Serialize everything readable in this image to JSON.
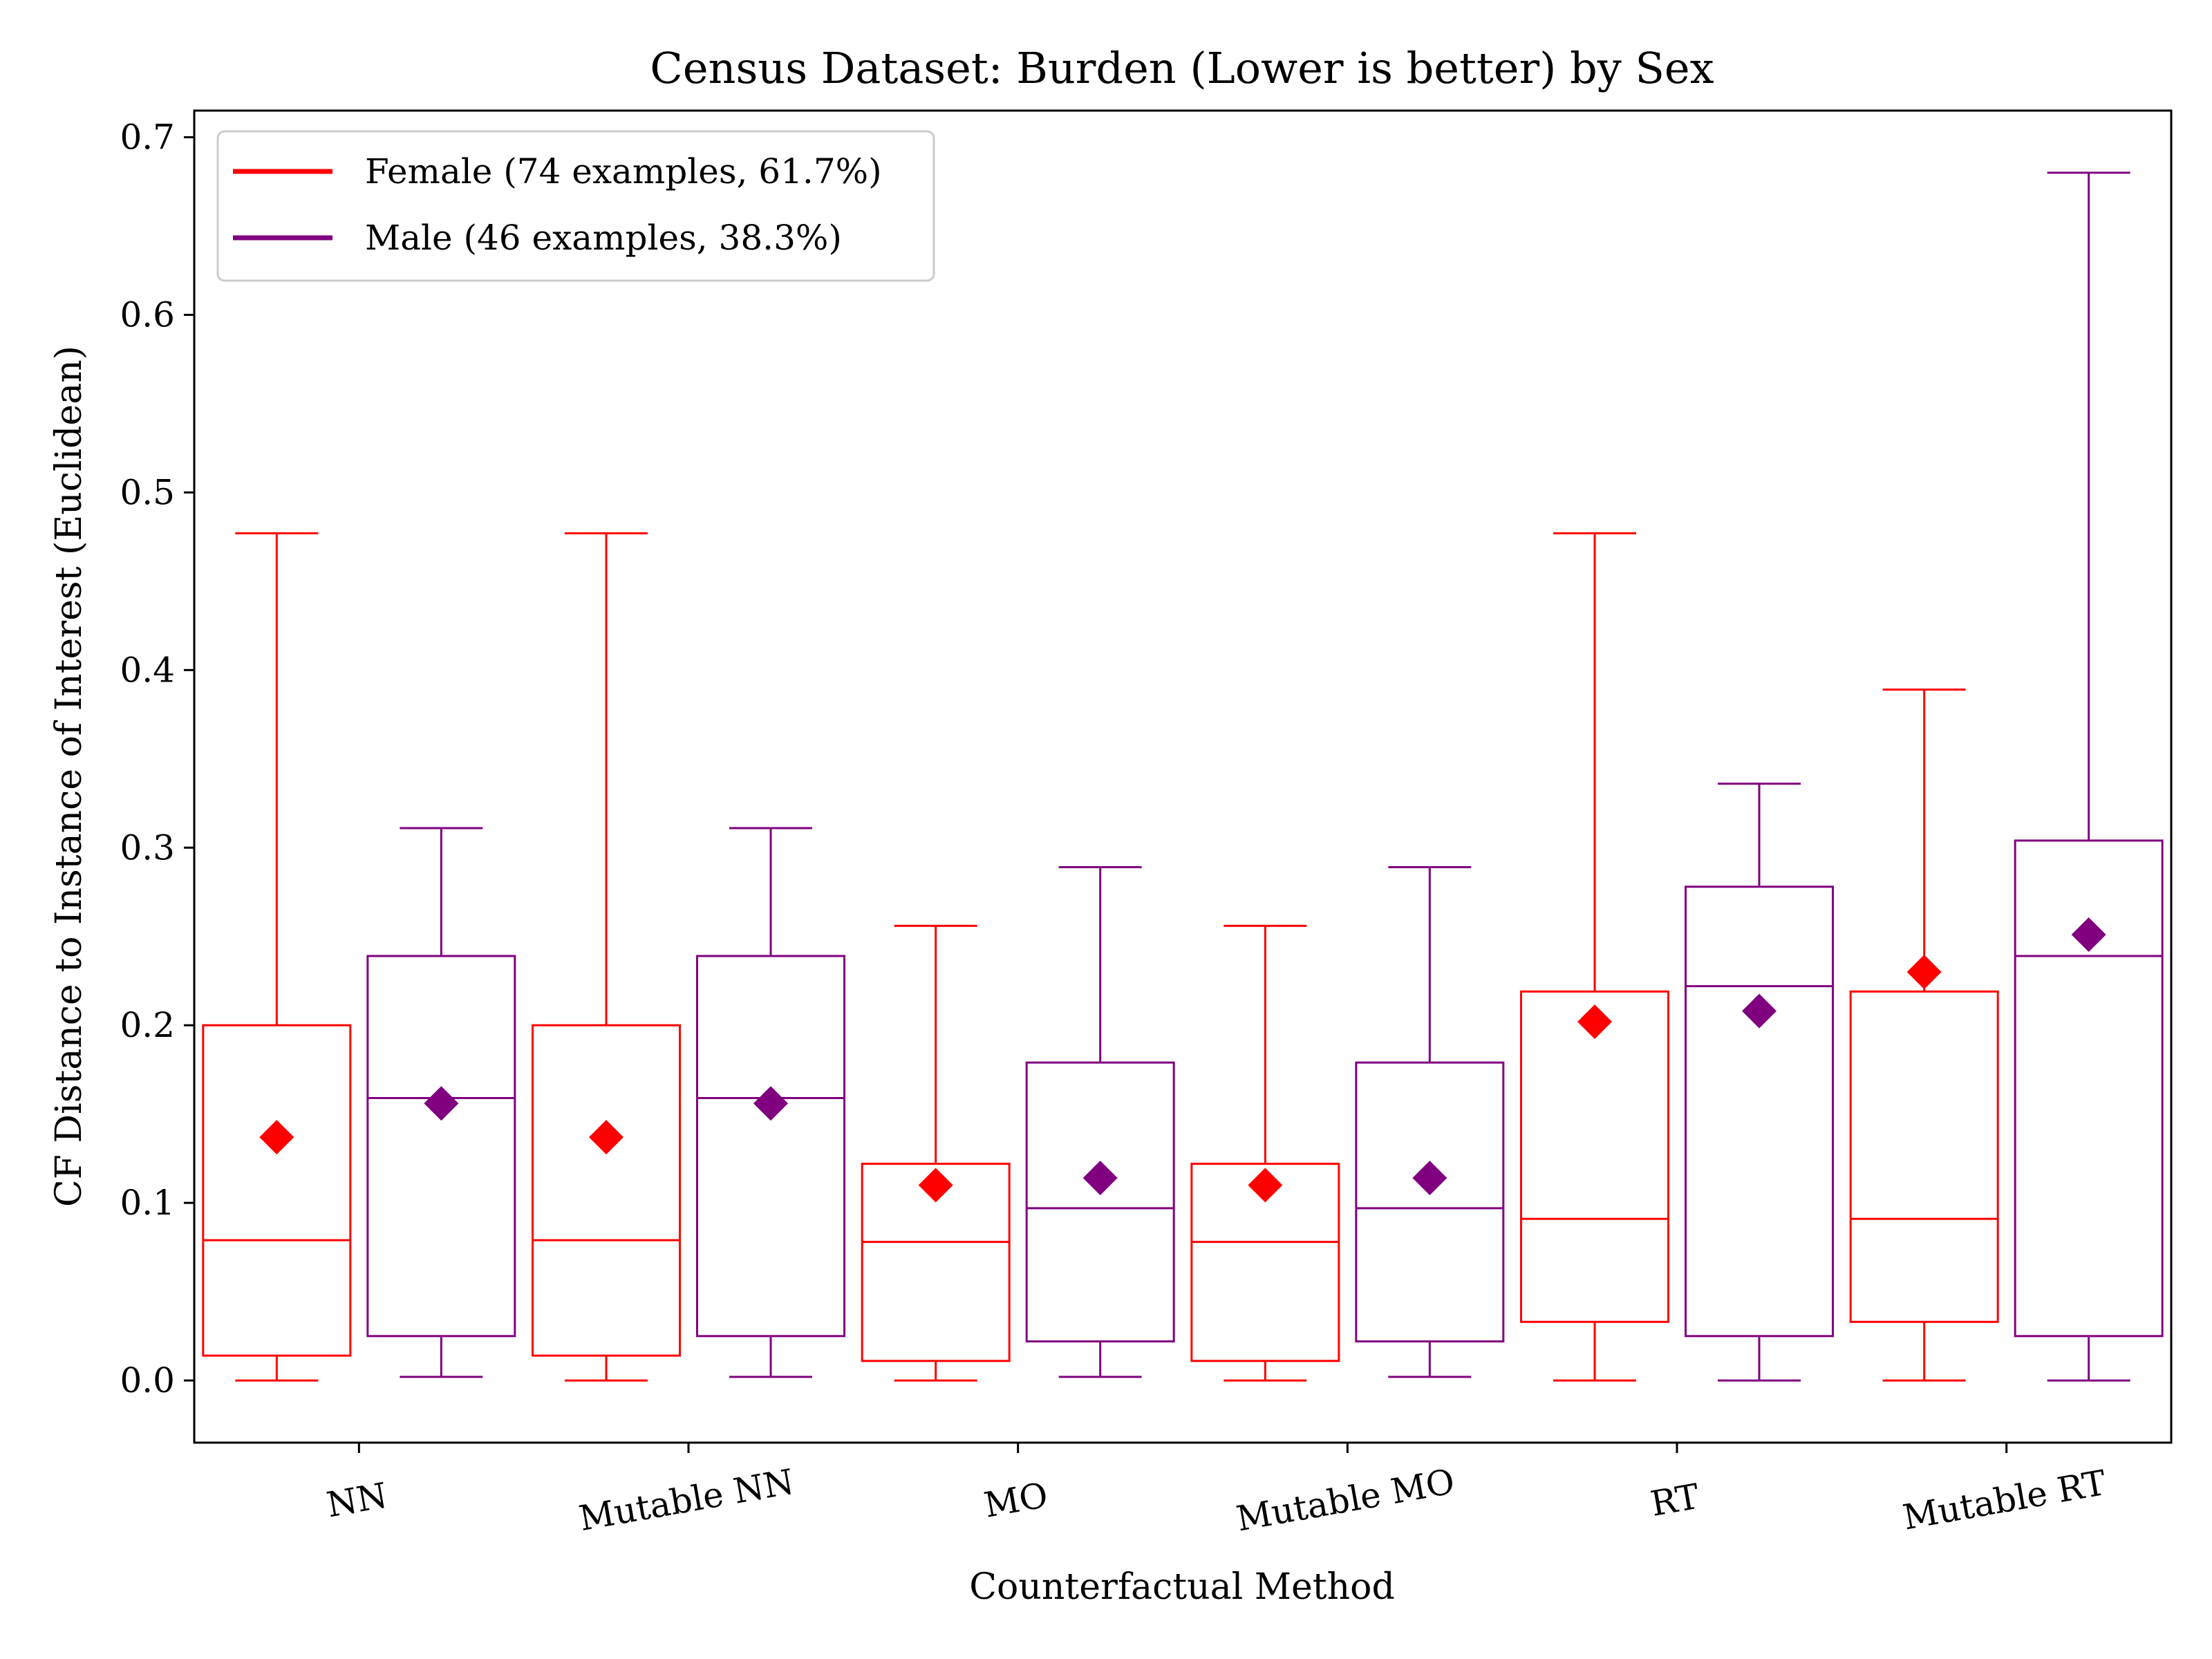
{
  "chart_data": {
    "type": "box",
    "title": "Census Dataset: Burden (Lower is better) by Sex",
    "xlabel": "Counterfactual Method",
    "ylabel": "CF Distance to Instance of Interest (Euclidean)",
    "ylim": [
      -0.035,
      0.715
    ],
    "yticks": [
      0.0,
      0.1,
      0.2,
      0.3,
      0.4,
      0.5,
      0.6,
      0.7
    ],
    "ytick_labels": [
      "0.0",
      "0.1",
      "0.2",
      "0.3",
      "0.4",
      "0.5",
      "0.6",
      "0.7"
    ],
    "categories": [
      "NN",
      "Mutable NN",
      "MO",
      "Mutable MO",
      "RT",
      "Mutable RT"
    ],
    "grid": false,
    "legend_position": "top-left",
    "series": [
      {
        "name": "Female (74 examples, 61.7%)",
        "color": "#ff0000",
        "boxes": [
          {
            "min": 0.0,
            "q1": 0.014,
            "median": 0.079,
            "q3": 0.2,
            "max": 0.477,
            "mean": 0.137
          },
          {
            "min": 0.0,
            "q1": 0.014,
            "median": 0.079,
            "q3": 0.2,
            "max": 0.477,
            "mean": 0.137
          },
          {
            "min": 0.0,
            "q1": 0.011,
            "median": 0.078,
            "q3": 0.122,
            "max": 0.256,
            "mean": 0.11
          },
          {
            "min": 0.0,
            "q1": 0.011,
            "median": 0.078,
            "q3": 0.122,
            "max": 0.256,
            "mean": 0.11
          },
          {
            "min": 0.0,
            "q1": 0.033,
            "median": 0.091,
            "q3": 0.219,
            "max": 0.477,
            "mean": 0.202
          },
          {
            "min": 0.0,
            "q1": 0.033,
            "median": 0.091,
            "q3": 0.219,
            "max": 0.389,
            "mean": 0.23
          }
        ]
      },
      {
        "name": "Male (46 examples, 38.3%)",
        "color": "#800080",
        "boxes": [
          {
            "min": 0.002,
            "q1": 0.025,
            "median": 0.159,
            "q3": 0.239,
            "max": 0.311,
            "mean": 0.156
          },
          {
            "min": 0.002,
            "q1": 0.025,
            "median": 0.159,
            "q3": 0.239,
            "max": 0.311,
            "mean": 0.156
          },
          {
            "min": 0.002,
            "q1": 0.022,
            "median": 0.097,
            "q3": 0.179,
            "max": 0.289,
            "mean": 0.114
          },
          {
            "min": 0.002,
            "q1": 0.022,
            "median": 0.097,
            "q3": 0.179,
            "max": 0.289,
            "mean": 0.114
          },
          {
            "min": 0.0,
            "q1": 0.025,
            "median": 0.222,
            "q3": 0.278,
            "max": 0.336,
            "mean": 0.208
          },
          {
            "min": 0.0,
            "q1": 0.025,
            "median": 0.239,
            "q3": 0.304,
            "max": 0.68,
            "mean": 0.251
          }
        ]
      }
    ]
  }
}
